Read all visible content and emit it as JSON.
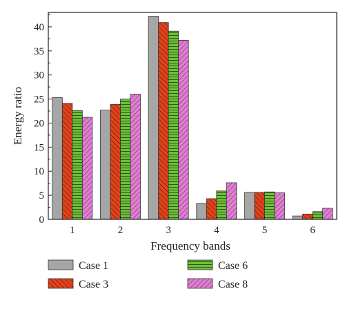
{
  "chart_data": {
    "type": "bar",
    "xlabel": "Frequency bands",
    "ylabel": "Energy ratio",
    "categories": [
      "1",
      "2",
      "3",
      "4",
      "5",
      "6"
    ],
    "ylim": [
      0,
      43
    ],
    "yticks": [
      0,
      5,
      10,
      15,
      20,
      25,
      30,
      35,
      40
    ],
    "grid": false,
    "legend_position": "bottom",
    "series": [
      {
        "name": "Case 1",
        "values": [
          25.3,
          22.7,
          42.2,
          3.3,
          5.6,
          0.7
        ],
        "color": "#a6a6a6",
        "pattern": "solid"
      },
      {
        "name": "Case 3",
        "values": [
          24.1,
          23.9,
          40.9,
          4.3,
          5.6,
          1.1
        ],
        "color": "#e0431c",
        "pattern": "diagonal"
      },
      {
        "name": "Case 6",
        "values": [
          22.6,
          25.0,
          39.1,
          5.9,
          5.7,
          1.6
        ],
        "color": "#6fbf3a",
        "pattern": "horizontal"
      },
      {
        "name": "Case 8",
        "values": [
          21.2,
          26.0,
          37.2,
          7.6,
          5.5,
          2.3
        ],
        "color": "#de7fd1",
        "pattern": "diagonal"
      }
    ]
  }
}
